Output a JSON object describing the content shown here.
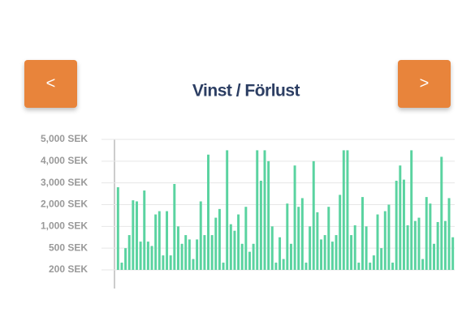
{
  "buttons": {
    "prev": "<",
    "next": ">"
  },
  "chart_data": {
    "type": "bar",
    "title": "Vinst / Förlust",
    "color": "#5ad3a0",
    "categories": [
      null,
      null,
      null,
      null,
      null,
      null,
      null,
      null,
      null,
      null,
      null,
      null,
      null,
      null,
      null,
      null,
      null,
      null,
      null,
      null,
      null,
      null,
      null,
      null,
      null,
      null,
      null,
      null,
      null,
      null,
      null,
      null,
      null,
      null,
      null,
      null,
      null,
      null,
      null,
      null,
      null,
      null,
      null,
      null,
      null,
      null,
      null,
      null,
      null,
      null,
      null,
      null,
      null,
      null,
      null,
      null,
      null,
      null,
      null,
      null,
      null,
      null,
      null,
      null,
      null,
      null,
      null,
      null,
      null,
      null,
      null,
      null,
      null,
      null,
      null,
      null,
      null,
      null,
      null,
      null,
      null,
      null,
      null,
      null,
      null,
      null,
      null,
      null,
      null,
      null
    ],
    "values": [
      2800,
      300,
      500,
      800,
      2200,
      2150,
      650,
      2650,
      650,
      550,
      1550,
      1700,
      400,
      1700,
      400,
      2950,
      1000,
      600,
      800,
      700,
      350,
      700,
      2150,
      800,
      4300,
      800,
      1400,
      1800,
      300,
      4500,
      1100,
      900,
      1550,
      600,
      1900,
      450,
      600,
      4500,
      3100,
      4500,
      4000,
      1000,
      300,
      750,
      350,
      2050,
      600,
      3800,
      1900,
      2300,
      300,
      1000,
      4000,
      1650,
      700,
      800,
      1900,
      650,
      800,
      2450,
      4500,
      4500,
      800,
      1050,
      300,
      2350,
      1000,
      300,
      400,
      1550,
      500,
      1700,
      2000,
      300,
      3100,
      3800,
      3150,
      1050,
      4500,
      1250,
      1400,
      350,
      2350,
      2050,
      600,
      1200,
      4200,
      1250,
      2300,
      750
    ],
    "ylim": [
      200,
      5000
    ],
    "yticks": [
      {
        "value": 200,
        "label": "200 SEK"
      },
      {
        "value": 500,
        "label": "500 SEK"
      },
      {
        "value": 1000,
        "label": "1,000 SEK"
      },
      {
        "value": 2000,
        "label": "2,000 SEK"
      },
      {
        "value": 3000,
        "label": "3,000 SEK"
      },
      {
        "value": 4000,
        "label": "4,000 SEK"
      },
      {
        "value": 5000,
        "label": "5,000 SEK"
      }
    ],
    "grid": true
  }
}
